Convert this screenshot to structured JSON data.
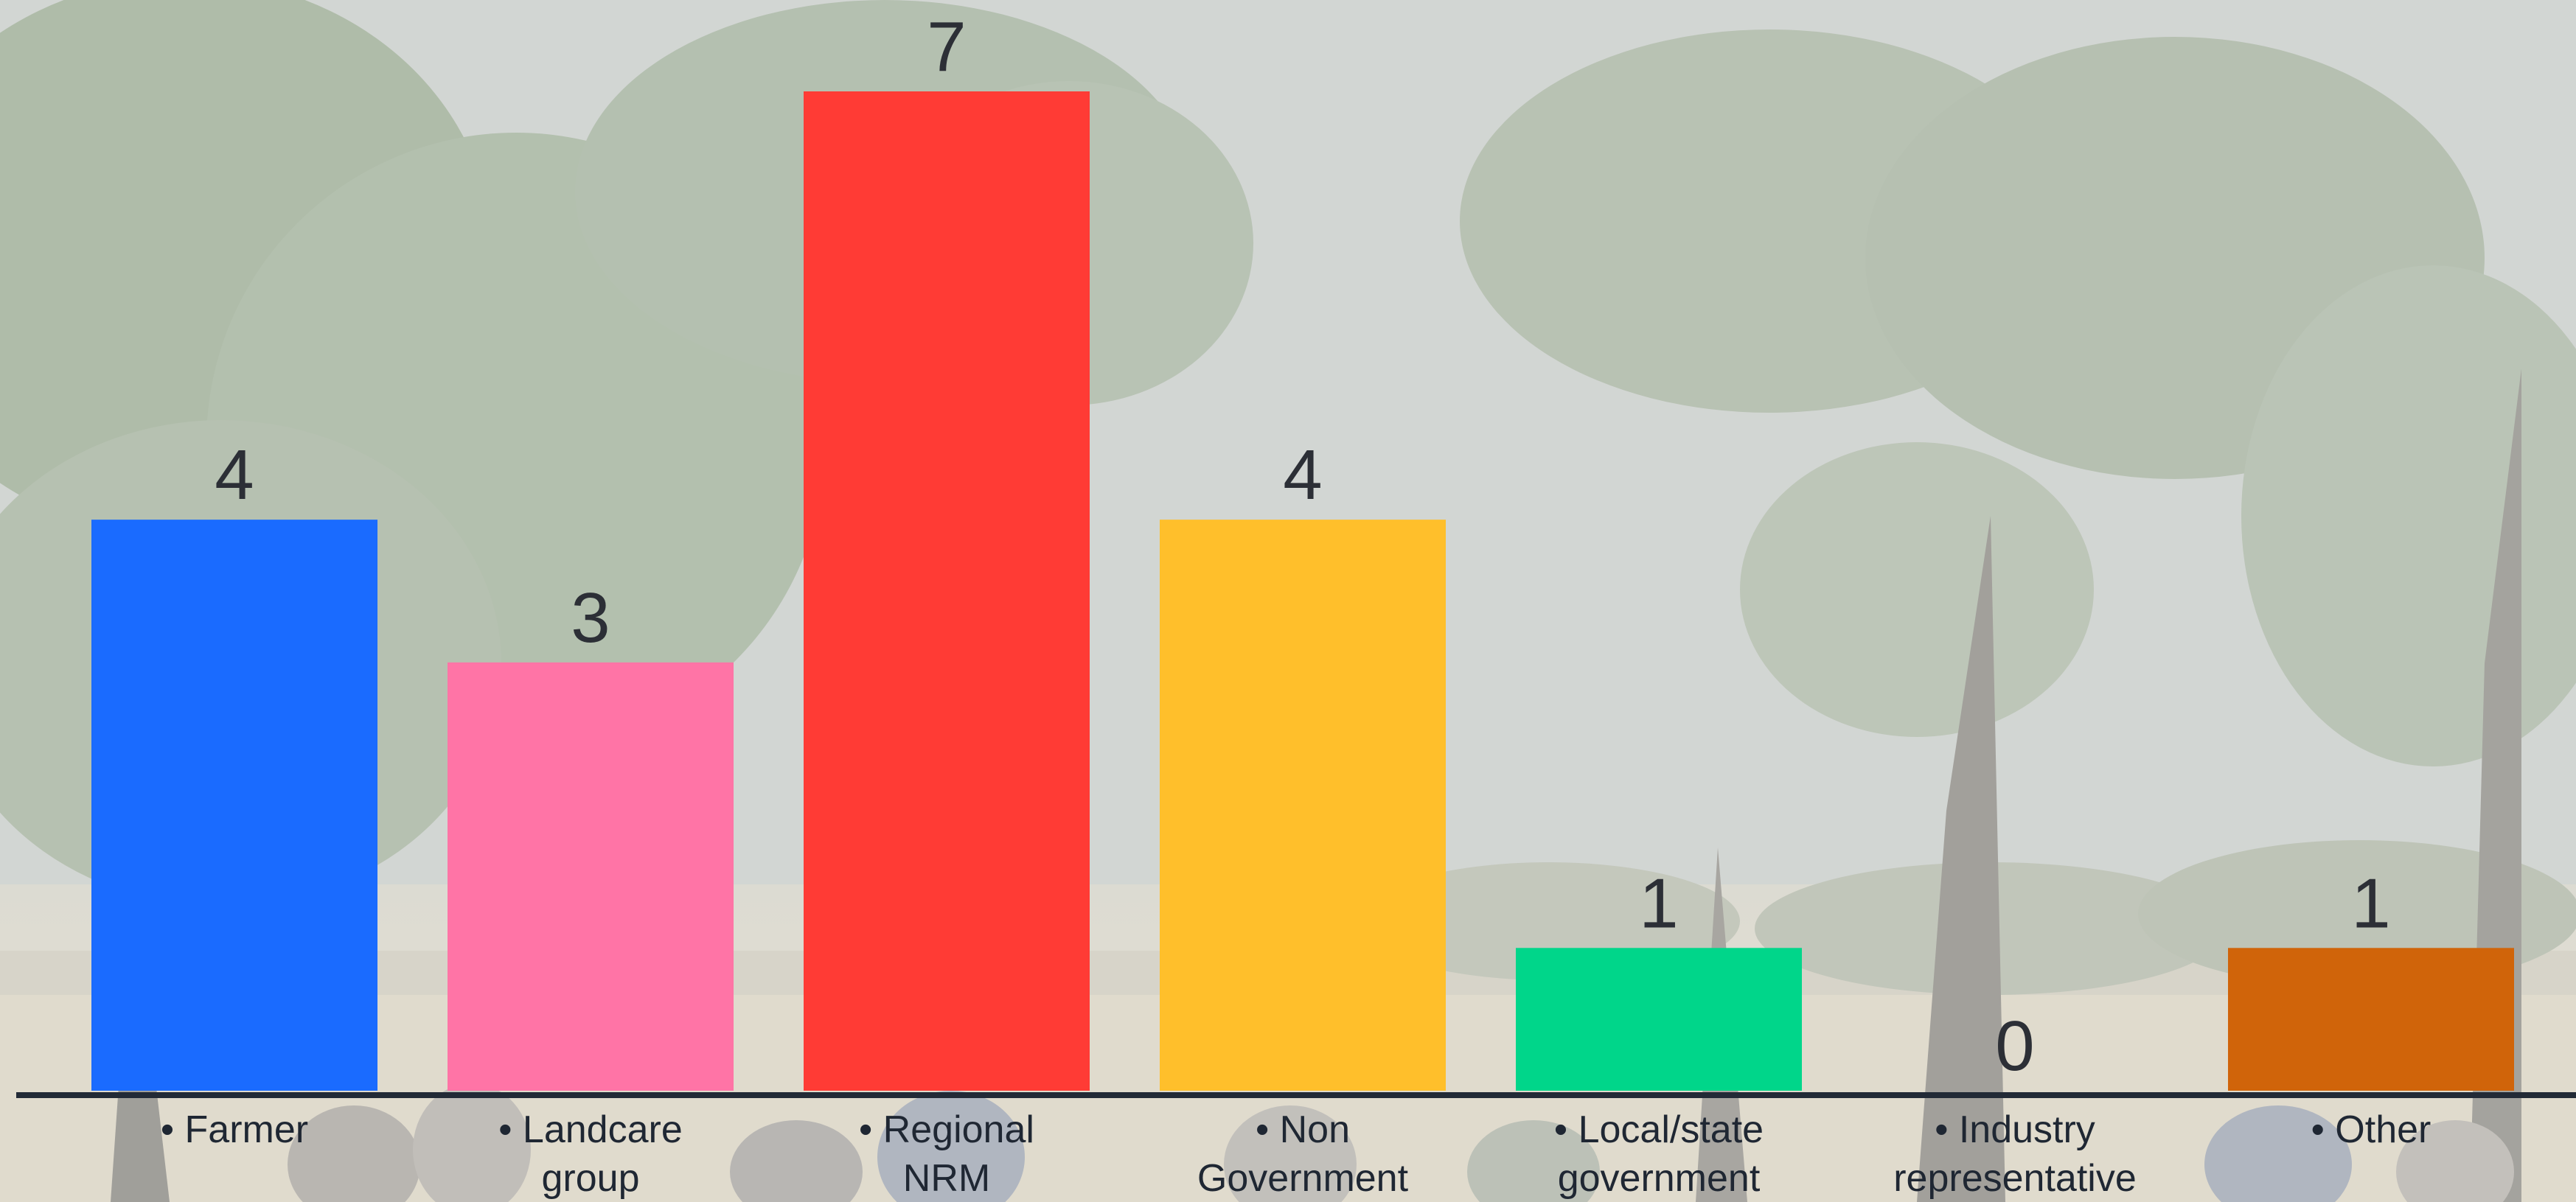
{
  "chart_data": {
    "type": "bar",
    "categories": [
      [
        "• Farmer"
      ],
      [
        "• Landcare",
        "group"
      ],
      [
        "• Regional",
        "NRM"
      ],
      [
        "• Non",
        "Government"
      ],
      [
        "• Local/state",
        "government"
      ],
      [
        "• Industry",
        "representative"
      ],
      [
        "• Other"
      ]
    ],
    "values": [
      4,
      3,
      7,
      4,
      1,
      0,
      1
    ],
    "colors": [
      "#1a6bff",
      "#ff74a6",
      "#ff3b35",
      "#ffbf2b",
      "#00d68a",
      "#9a9a9a",
      "#d0640a"
    ],
    "axis_color": "#222a36",
    "ylim": [
      0,
      7
    ],
    "title": "",
    "xlabel": "",
    "ylabel": ""
  }
}
